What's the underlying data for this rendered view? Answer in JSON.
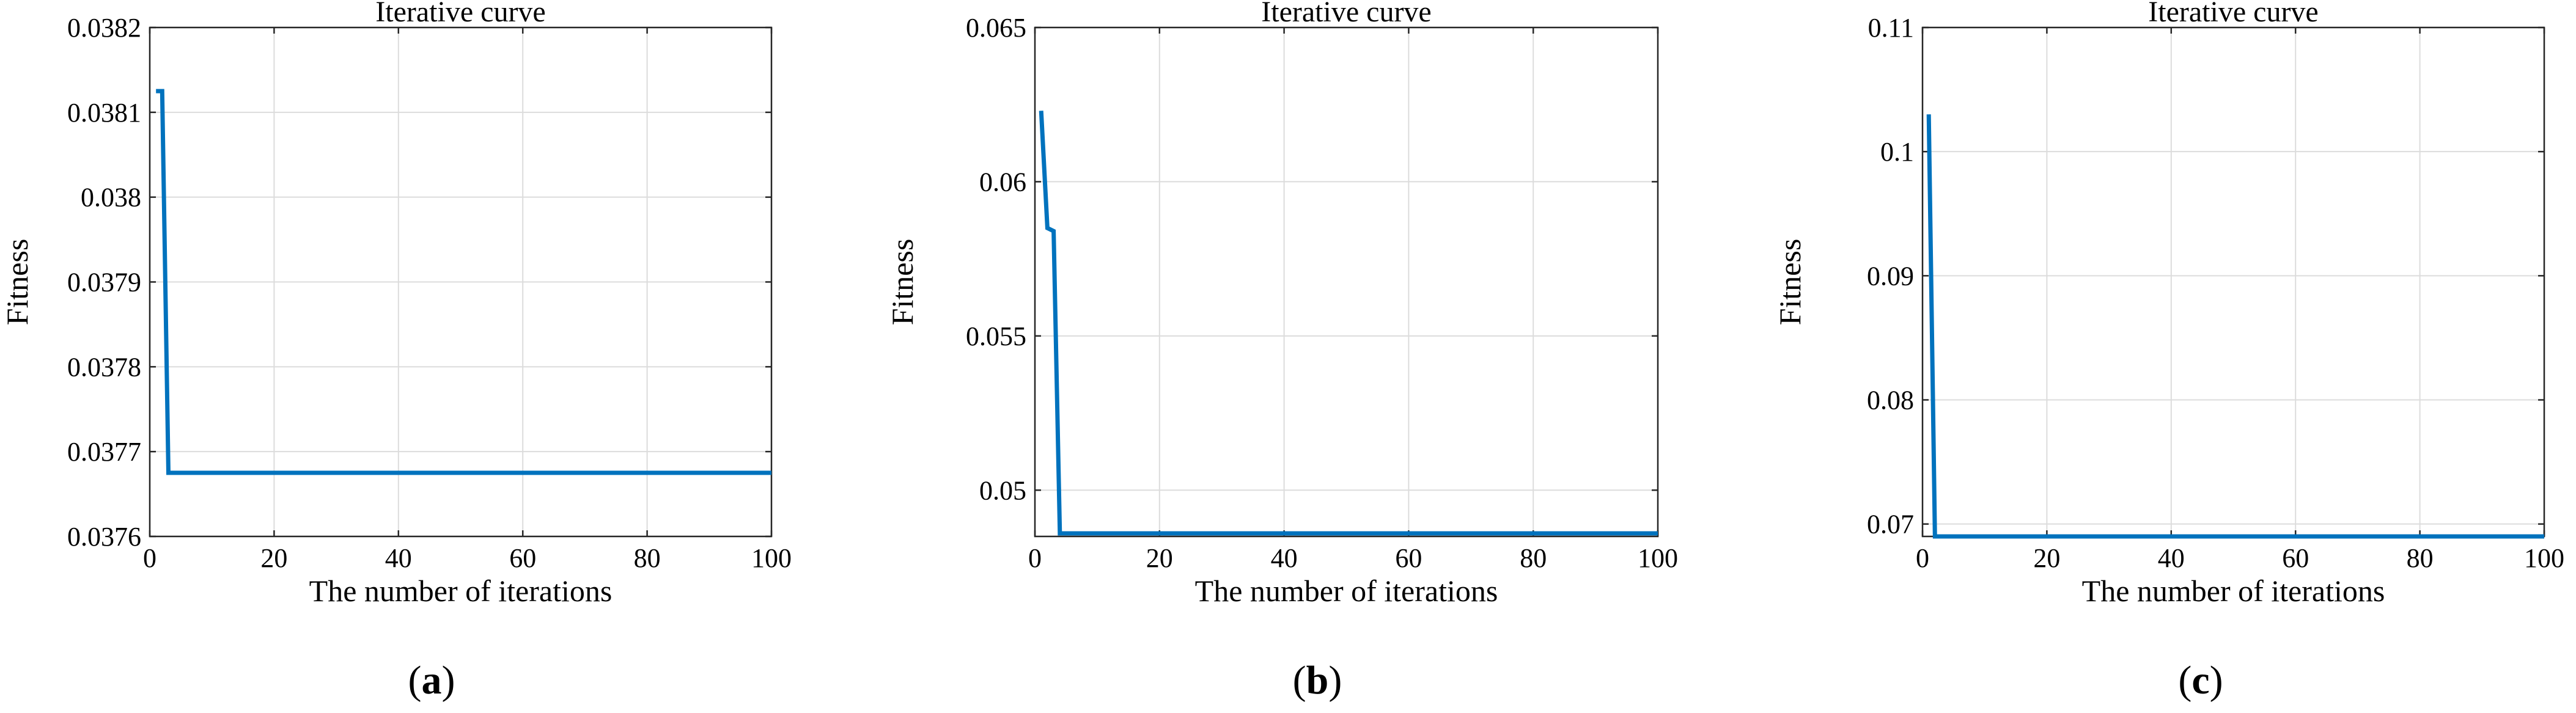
{
  "figure": {
    "panels": [
      {
        "caption_open": "(",
        "caption_letter": "a",
        "caption_close": ")"
      },
      {
        "caption_open": "(",
        "caption_letter": "b",
        "caption_close": ")"
      },
      {
        "caption_open": "(",
        "caption_letter": "c",
        "caption_close": ")"
      }
    ]
  },
  "chart_data": [
    {
      "type": "line",
      "title": "Iterative curve",
      "xlabel": "The number of iterations",
      "ylabel": "Fitness",
      "xlim": [
        0,
        100
      ],
      "ylim": [
        0.0376,
        0.0382
      ],
      "xticks": [
        0,
        20,
        40,
        60,
        80,
        100
      ],
      "xtick_labels": [
        "0",
        "20",
        "40",
        "60",
        "80",
        "100"
      ],
      "yticks": [
        0.0376,
        0.0377,
        0.0378,
        0.0379,
        0.038,
        0.0381,
        0.0382
      ],
      "ytick_labels": [
        "0.0376",
        "0.0377",
        "0.0378",
        "0.0379",
        "0.038",
        "0.0381",
        "0.0382"
      ],
      "grid": true,
      "series_color": "#0072BD",
      "series": [
        {
          "x": [
            1,
            2,
            3,
            100
          ],
          "y": [
            0.038125,
            0.038125,
            0.037675,
            0.037675
          ]
        }
      ]
    },
    {
      "type": "line",
      "title": "Iterative curve",
      "xlabel": "The number of iterations",
      "ylabel": "Fitness",
      "xlim": [
        0,
        100
      ],
      "ylim": [
        0.0485,
        0.065
      ],
      "xticks": [
        0,
        20,
        40,
        60,
        80,
        100
      ],
      "xtick_labels": [
        "0",
        "20",
        "40",
        "60",
        "80",
        "100"
      ],
      "yticks": [
        0.05,
        0.055,
        0.06,
        0.065
      ],
      "ytick_labels": [
        "0.05",
        "0.055",
        "0.06",
        "0.065"
      ],
      "grid": true,
      "series_color": "#0072BD",
      "series": [
        {
          "x": [
            1,
            2,
            3,
            4,
            100
          ],
          "y": [
            0.0623,
            0.0585,
            0.0584,
            0.0486,
            0.0486
          ]
        }
      ]
    },
    {
      "type": "line",
      "title": "Iterative curve",
      "xlabel": "The number of iterations",
      "ylabel": "Fitness",
      "xlim": [
        0,
        100
      ],
      "ylim": [
        0.069,
        0.11
      ],
      "xticks": [
        0,
        20,
        40,
        60,
        80,
        100
      ],
      "xtick_labels": [
        "0",
        "20",
        "40",
        "60",
        "80",
        "100"
      ],
      "yticks": [
        0.07,
        0.08,
        0.09,
        0.1,
        0.11
      ],
      "ytick_labels": [
        "0.07",
        "0.08",
        "0.09",
        "0.1",
        "0.11"
      ],
      "grid": true,
      "series_color": "#0072BD",
      "series": [
        {
          "x": [
            1,
            2,
            100
          ],
          "y": [
            0.103,
            0.069,
            0.069
          ]
        }
      ]
    }
  ]
}
